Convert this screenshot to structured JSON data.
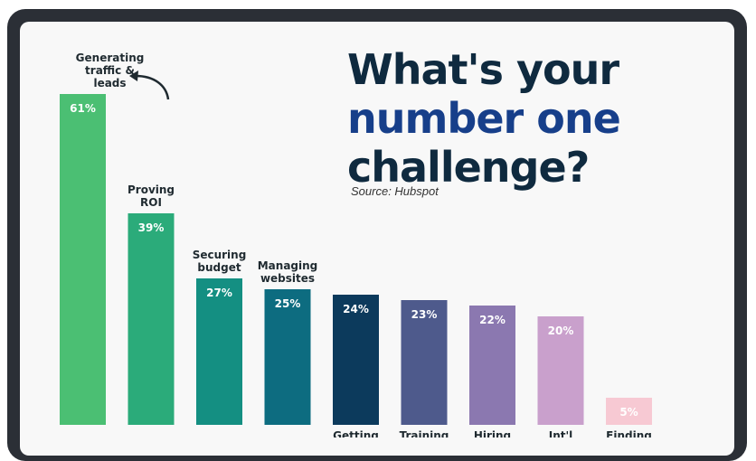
{
  "title": {
    "line1": "What's your",
    "line2": "number one",
    "line3": "challenge?"
  },
  "source": "Source: Hubspot",
  "chart_data": {
    "type": "bar",
    "categories": [
      "Generating traffic & leads",
      "Proving ROI",
      "Securing budget",
      "Managing websites",
      "Getting",
      "Training",
      "Hiring",
      "Int'l",
      "Finding"
    ],
    "values": [
      61,
      39,
      27,
      25,
      24,
      23,
      22,
      20,
      5
    ],
    "value_labels": [
      "61%",
      "39%",
      "27%",
      "25%",
      "24%",
      "23%",
      "22%",
      "20%",
      "5%"
    ],
    "ylim": [
      0,
      61
    ],
    "colors": [
      "#4bbf73",
      "#2bab7a",
      "#148f82",
      "#0d6c80",
      "#0c3a5c",
      "#4e5a8c",
      "#8b78b0",
      "#c9a0cc",
      "#f7c9d3"
    ],
    "title": "What's your number one challenge?"
  }
}
